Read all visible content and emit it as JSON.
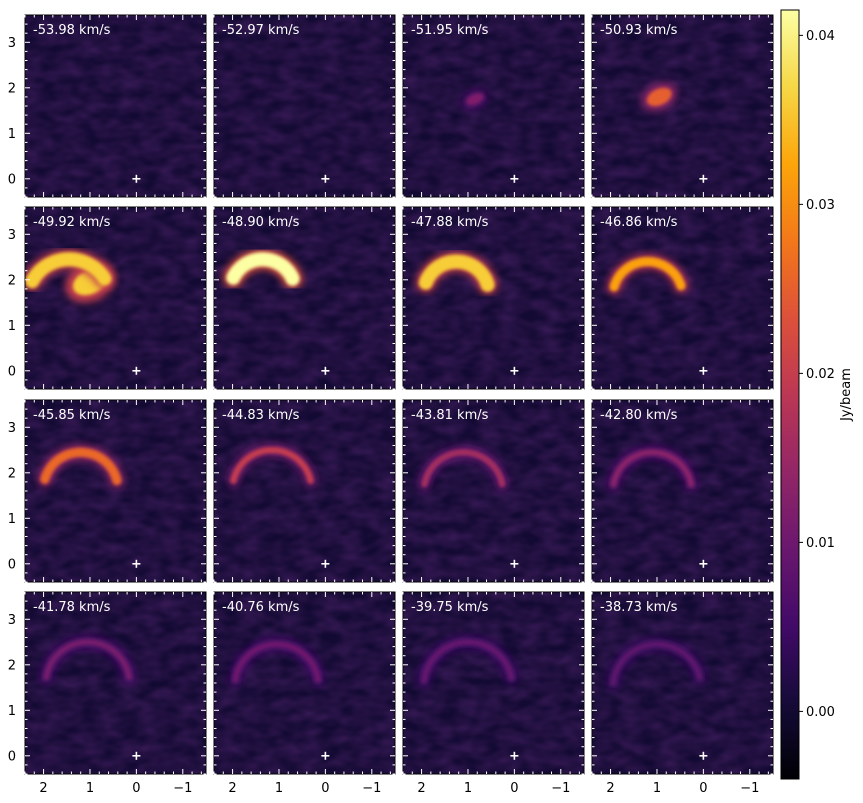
{
  "chart_data": {
    "type": "heatmap",
    "layout": "channel-map-grid",
    "rows": 4,
    "cols": 4,
    "channels": [
      "-53.98 km/s",
      "-52.97 km/s",
      "-51.95 km/s",
      "-50.93 km/s",
      "-49.92 km/s",
      "-48.90 km/s",
      "-47.88 km/s",
      "-46.86 km/s",
      "-45.85 km/s",
      "-44.83 km/s",
      "-43.81 km/s",
      "-42.80 km/s",
      "-41.78 km/s",
      "-40.76 km/s",
      "-39.75 km/s",
      "-38.73 km/s"
    ],
    "peak_intensity": [
      0.002,
      0.002,
      0.012,
      0.025,
      0.036,
      0.042,
      0.036,
      0.032,
      0.026,
      0.02,
      0.016,
      0.013,
      0.011,
      0.01,
      0.009,
      0.008
    ],
    "xlim": [
      2.4,
      -1.5
    ],
    "ylim": [
      -0.4,
      3.6
    ],
    "x_ticks": [
      "2",
      "1",
      "0",
      "−1"
    ],
    "x_tick_values": [
      2,
      1,
      0,
      -1
    ],
    "y_ticks": [
      "0",
      "1",
      "2",
      "3"
    ],
    "y_tick_values": [
      0,
      1,
      2,
      3
    ],
    "reference_marker": {
      "x": 0,
      "y": 0,
      "symbol": "+",
      "color": "#ffffff"
    },
    "colormap": "inferno",
    "colorbar": {
      "label": "Jy/beam",
      "range": [
        -0.004,
        0.0415
      ],
      "ticks": [
        "0.00",
        "0.01",
        "0.02",
        "0.03",
        "0.04"
      ],
      "tick_values": [
        0.0,
        0.01,
        0.02,
        0.03,
        0.04
      ]
    }
  }
}
